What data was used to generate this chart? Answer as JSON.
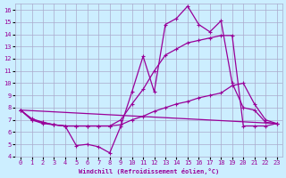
{
  "xlabel": "Windchill (Refroidissement éolien,°C)",
  "bg_color": "#cceeff",
  "line_color": "#990099",
  "grid_color": "#aaaacc",
  "xlim": [
    -0.5,
    23.5
  ],
  "ylim": [
    4,
    16.5
  ],
  "yticks": [
    4,
    5,
    6,
    7,
    8,
    9,
    10,
    11,
    12,
    13,
    14,
    15,
    16
  ],
  "xticks": [
    0,
    1,
    2,
    3,
    4,
    5,
    6,
    7,
    8,
    9,
    10,
    11,
    12,
    13,
    14,
    15,
    16,
    17,
    18,
    19,
    20,
    21,
    22,
    23
  ],
  "line1_x": [
    0,
    1,
    2,
    3,
    4,
    5,
    6,
    7,
    8,
    9,
    10,
    11,
    12,
    13,
    14,
    15,
    16,
    17,
    18,
    19,
    20,
    21,
    22,
    23
  ],
  "line1_y": [
    7.8,
    7.0,
    6.8,
    6.6,
    6.5,
    4.9,
    5.0,
    4.8,
    4.3,
    6.5,
    9.3,
    12.2,
    9.3,
    14.8,
    15.3,
    16.3,
    14.8,
    14.2,
    15.1,
    10.0,
    8.0,
    7.8,
    6.8,
    6.7
  ],
  "line2_x": [
    0,
    1,
    2,
    3,
    4,
    5,
    6,
    7,
    8,
    9,
    10,
    11,
    12,
    13,
    14,
    15,
    16,
    17,
    18,
    19,
    20,
    21,
    22,
    23
  ],
  "line2_y": [
    7.8,
    7.1,
    6.8,
    6.6,
    6.5,
    6.5,
    6.5,
    6.5,
    6.5,
    7.0,
    8.3,
    9.5,
    11.0,
    12.3,
    12.8,
    13.3,
    13.5,
    13.7,
    13.9,
    13.9,
    6.5,
    6.5,
    6.5,
    6.7
  ],
  "line3_x": [
    0,
    1,
    2,
    3,
    4,
    5,
    6,
    7,
    8,
    9,
    10,
    11,
    12,
    13,
    14,
    15,
    16,
    17,
    18,
    19,
    20,
    21,
    22,
    23
  ],
  "line3_y": [
    7.8,
    7.0,
    6.7,
    6.6,
    6.5,
    6.5,
    6.5,
    6.5,
    6.5,
    6.6,
    7.0,
    7.3,
    7.7,
    8.0,
    8.3,
    8.5,
    8.8,
    9.0,
    9.2,
    9.8,
    10.0,
    8.3,
    7.0,
    6.7
  ],
  "line4_x": [
    0,
    23
  ],
  "line4_y": [
    7.8,
    6.7
  ]
}
